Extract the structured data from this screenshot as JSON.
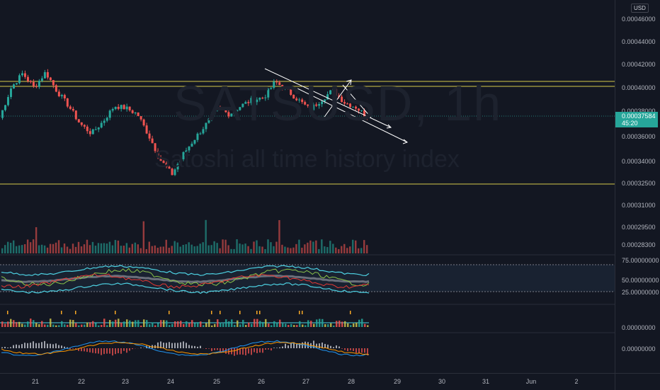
{
  "currency": "USD",
  "watermark": {
    "symbol": "SATSUSD, 1h",
    "description": "Satoshi all time history index"
  },
  "last_price": {
    "value": "0.00037584",
    "countdown": "45:20"
  },
  "price_axis_labels": [
    {
      "text": "0.00046000",
      "value": 0.00046
    },
    {
      "text": "0.00044000",
      "value": 0.00044
    },
    {
      "text": "0.00042000",
      "value": 0.00042
    },
    {
      "text": "0.00040000",
      "value": 0.0004
    },
    {
      "text": "0.00038000",
      "value": 0.00038
    },
    {
      "text": "0.00036000",
      "value": 0.00036
    },
    {
      "text": "0.00034000",
      "value": 0.00034
    },
    {
      "text": "0.00032500",
      "value": 0.000325
    },
    {
      "text": "0.00031000",
      "value": 0.00031
    },
    {
      "text": "0.00029500",
      "value": 0.000295
    },
    {
      "text": "0.00028300",
      "value": 0.000283
    }
  ],
  "indicator_axis_labels": [
    {
      "text": "75.00000000",
      "value": 75
    },
    {
      "text": "50.00000000",
      "value": 50
    },
    {
      "text": "25.00000000",
      "value": 25
    }
  ],
  "histogram_axis_label": "0.00000000",
  "macd_axis_label": "0.00000000",
  "time_axis_labels": [
    "21",
    "22",
    "23",
    "24",
    "25",
    "26",
    "27",
    "28",
    "29",
    "30",
    "31",
    "Jun",
    "2"
  ],
  "horizontal_levels": [
    0.0004055,
    0.0004,
    0.000325
  ],
  "colors": {
    "background": "#131722",
    "up": "#26a69a",
    "down": "#ef5350",
    "level": "#d4c94a",
    "drawing": "#ffffff",
    "rsi_band": "#4dd0e1"
  },
  "chart_data": {
    "type": "candlestick",
    "symbol": "SATSUSD",
    "interval": "1h",
    "x": [
      "21",
      "22",
      "23",
      "24",
      "25",
      "26",
      "27",
      "28"
    ],
    "ylim": [
      0.00031,
      0.000465
    ],
    "close_path": [
      0.000375,
      0.0004,
      0.000412,
      0.0004,
      0.000413,
      0.000397,
      0.000385,
      0.00037,
      0.000362,
      0.000372,
      0.000385,
      0.000383,
      0.000378,
      0.00036,
      0.00034,
      0.000328,
      0.000345,
      0.000358,
      0.00037,
      0.000383,
      0.000378,
      0.000385,
      0.00039,
      0.000392,
      0.000405,
      0.000398,
      0.00039,
      0.000382,
      0.00039,
      0.000398,
      0.000388,
      0.000384,
      0.000376
    ],
    "last": 0.00037584
  }
}
